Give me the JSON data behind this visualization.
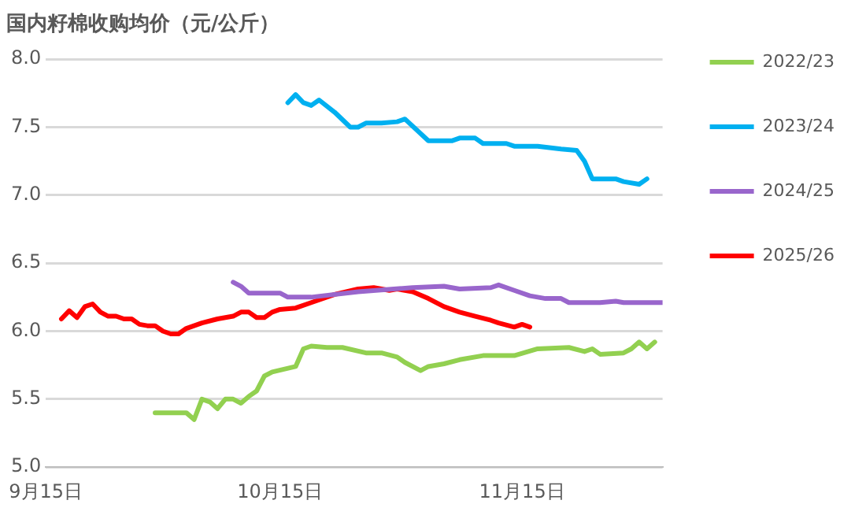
{
  "chart_data": {
    "type": "line",
    "title": "国内籽棉收购均价（元/公斤）",
    "xlim": [
      "--09-15",
      "--12-03"
    ],
    "xticks": [
      {
        "value": "--09-15",
        "label": "9月15日"
      },
      {
        "value": "--10-15",
        "label": "10月15日"
      },
      {
        "value": "--11-15",
        "label": "11月15日"
      }
    ],
    "ylim": [
      5,
      8
    ],
    "yticks": [
      {
        "value": 5,
        "label": "5.0"
      },
      {
        "value": 5.5,
        "label": "5.5"
      },
      {
        "value": 6,
        "label": "6.0"
      },
      {
        "value": 6.5,
        "label": "6.5"
      },
      {
        "value": 7,
        "label": "7.0"
      },
      {
        "value": 7.5,
        "label": "7.5"
      },
      {
        "value": 8,
        "label": "8.0"
      }
    ],
    "grid": "y",
    "legend": "right",
    "marker": "none",
    "line_style": "solid",
    "series": [
      {
        "name": "2022/23",
        "color": "#92d050",
        "x": [
          "--09-29",
          "--10-03",
          "--10-04",
          "--10-05",
          "--10-06",
          "--10-07",
          "--10-08",
          "--10-09",
          "--10-10",
          "--10-11",
          "--10-12",
          "--10-13",
          "--10-14",
          "--10-17",
          "--10-18",
          "--10-19",
          "--10-21",
          "--10-23",
          "--10-26",
          "--10-28",
          "--10-30",
          "--10-31",
          "--11-02",
          "--11-03",
          "--11-05",
          "--11-07",
          "--11-10",
          "--11-14",
          "--11-17",
          "--11-21",
          "--11-23",
          "--11-24",
          "--11-25",
          "--11-28",
          "--11-29",
          "--11-30",
          "--12-01",
          "--12-02"
        ],
        "values": [
          5.4,
          5.4,
          5.35,
          5.5,
          5.48,
          5.43,
          5.5,
          5.5,
          5.47,
          5.52,
          5.56,
          5.67,
          5.7,
          5.74,
          5.87,
          5.89,
          5.88,
          5.88,
          5.84,
          5.84,
          5.81,
          5.77,
          5.71,
          5.74,
          5.76,
          5.79,
          5.82,
          5.82,
          5.87,
          5.88,
          5.85,
          5.87,
          5.83,
          5.84,
          5.87,
          5.92,
          5.87,
          5.92
        ]
      },
      {
        "name": "2023/24",
        "color": "#00b0f0",
        "x": [
          "--10-16",
          "--10-17",
          "--10-18",
          "--10-19",
          "--10-20",
          "--10-22",
          "--10-24",
          "--10-25",
          "--10-26",
          "--10-28",
          "--10-30",
          "--10-31",
          "--11-03",
          "--11-06",
          "--11-07",
          "--11-09",
          "--11-10",
          "--11-13",
          "--11-14",
          "--11-17",
          "--11-20",
          "--11-22",
          "--11-23",
          "--11-24",
          "--11-27",
          "--11-28",
          "--11-30",
          "--12-01"
        ],
        "values": [
          7.68,
          7.74,
          7.68,
          7.66,
          7.7,
          7.61,
          7.5,
          7.5,
          7.53,
          7.53,
          7.54,
          7.56,
          7.4,
          7.4,
          7.42,
          7.42,
          7.38,
          7.38,
          7.36,
          7.36,
          7.34,
          7.33,
          7.25,
          7.12,
          7.12,
          7.1,
          7.08,
          7.12
        ]
      },
      {
        "name": "2024/25",
        "color": "#9966cc",
        "x": [
          "--10-09",
          "--10-10",
          "--10-11",
          "--10-15",
          "--10-16",
          "--10-19",
          "--10-25",
          "--11-01",
          "--11-05",
          "--11-07",
          "--11-11",
          "--11-12",
          "--11-14",
          "--11-16",
          "--11-18",
          "--11-20",
          "--11-21",
          "--11-25",
          "--11-27",
          "--11-28",
          "--12-03"
        ],
        "values": [
          6.36,
          6.33,
          6.28,
          6.28,
          6.25,
          6.25,
          6.29,
          6.32,
          6.33,
          6.31,
          6.32,
          6.34,
          6.3,
          6.26,
          6.24,
          6.24,
          6.21,
          6.21,
          6.22,
          6.21,
          6.21
        ]
      },
      {
        "name": "2025/26",
        "color": "#ff0000",
        "x": [
          "--09-17",
          "--09-18",
          "--09-19",
          "--09-20",
          "--09-21",
          "--09-22",
          "--09-23",
          "--09-24",
          "--09-25",
          "--09-26",
          "--09-27",
          "--09-28",
          "--09-29",
          "--09-30",
          "--10-01",
          "--10-02",
          "--10-03",
          "--10-04",
          "--10-05",
          "--10-07",
          "--10-08",
          "--10-09",
          "--10-10",
          "--10-11",
          "--10-12",
          "--10-13",
          "--10-14",
          "--10-15",
          "--10-17",
          "--10-19",
          "--10-22",
          "--10-25",
          "--10-27",
          "--10-29",
          "--10-30",
          "--11-01",
          "--11-03",
          "--11-05",
          "--11-07",
          "--11-09",
          "--11-11",
          "--11-12",
          "--11-14",
          "--11-15",
          "--11-16"
        ],
        "values": [
          6.09,
          6.15,
          6.1,
          6.18,
          6.2,
          6.14,
          6.11,
          6.11,
          6.09,
          6.09,
          6.05,
          6.04,
          6.04,
          6.0,
          5.98,
          5.98,
          6.02,
          6.04,
          6.06,
          6.09,
          6.1,
          6.11,
          6.14,
          6.14,
          6.1,
          6.1,
          6.14,
          6.16,
          6.17,
          6.21,
          6.27,
          6.31,
          6.32,
          6.3,
          6.31,
          6.29,
          6.24,
          6.18,
          6.14,
          6.11,
          6.08,
          6.06,
          6.03,
          6.05,
          6.03
        ]
      }
    ]
  }
}
